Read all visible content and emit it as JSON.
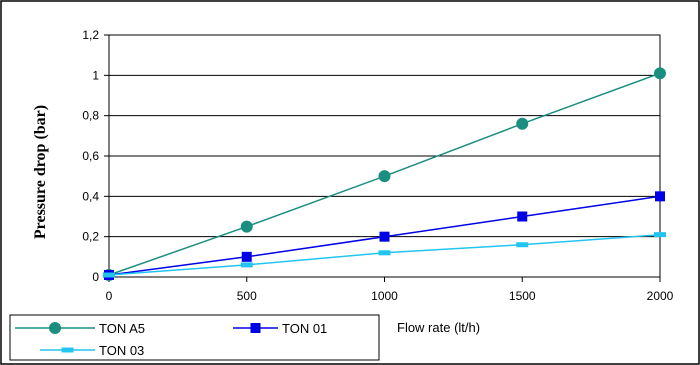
{
  "chart_data": {
    "type": "line",
    "title": "",
    "xlabel": "Flow rate (lt/h)",
    "ylabel": "Pressure drop (bar)",
    "xlim": [
      0,
      2000
    ],
    "ylim": [
      0,
      1.2
    ],
    "x_ticks": [
      "0",
      "500",
      "1000",
      "1500",
      "2000"
    ],
    "y_ticks": [
      "0",
      "0,2",
      "0,4",
      "0,6",
      "0,8",
      "1",
      "1,2"
    ],
    "grid": "horizontal",
    "legend_position": "bottom-left",
    "series": [
      {
        "name": "TON A5",
        "color": "#1a8f80",
        "marker": "circle",
        "x": [
          0,
          500,
          1000,
          1500,
          2000
        ],
        "y": [
          0.01,
          0.25,
          0.5,
          0.76,
          1.01
        ]
      },
      {
        "name": "TON 01",
        "color": "#0000e6",
        "marker": "square",
        "x": [
          0,
          500,
          1000,
          1500,
          2000
        ],
        "y": [
          0.01,
          0.1,
          0.2,
          0.3,
          0.4
        ]
      },
      {
        "name": "TON 03",
        "color": "#22c4f0",
        "marker": "dash",
        "x": [
          0,
          500,
          1000,
          1500,
          2000
        ],
        "y": [
          0.01,
          0.06,
          0.12,
          0.16,
          0.21
        ]
      }
    ]
  }
}
